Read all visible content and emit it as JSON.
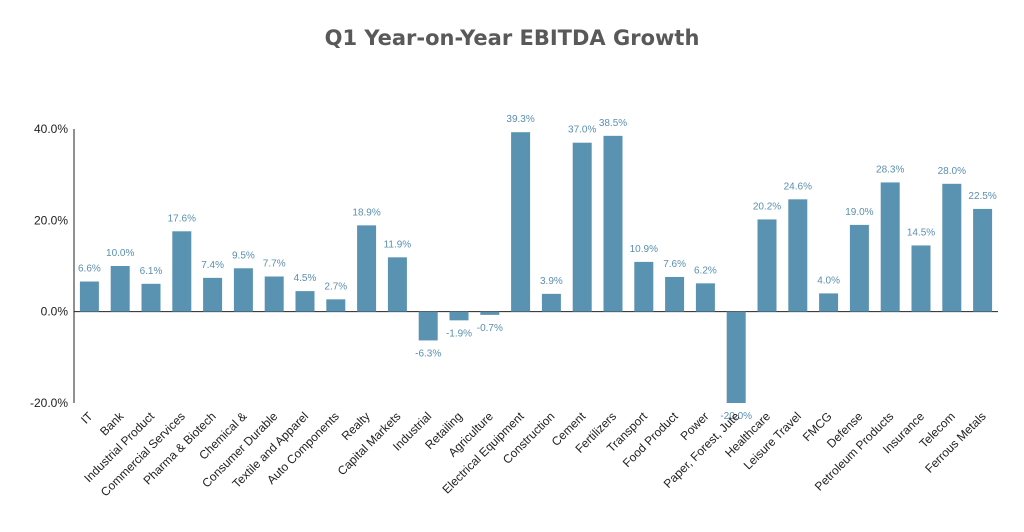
{
  "chart_data": {
    "type": "bar",
    "title": "Q1 Year-on-Year EBITDA Growth",
    "xlabel": "",
    "ylabel": "",
    "ylim": [
      -20,
      40
    ],
    "yticks": [
      "40.0%",
      "20.0%",
      "0.0%",
      "-20.0%"
    ],
    "ytick_values": [
      40,
      20,
      0,
      -20
    ],
    "bar_color": "#5a93b1",
    "label_color": "#5a8fb0",
    "categories": [
      "IT",
      "Bank",
      "Industrial Product",
      "Commercial Services",
      "Pharma & Biotech",
      "Chemical &",
      "Consumer Durable",
      "Textile and Apparel",
      "Auto Components",
      "Realty",
      "Capital Markets",
      "Industrial",
      "Retailing",
      "Agriculture",
      "Electrical Equipment",
      "Construction",
      "Cement",
      "Fertilizers",
      "Transport",
      "Food Product",
      "Power",
      "Paper, Forest, Jute",
      "Healthcare",
      "Leisure Travel",
      "FMCG",
      "Defense",
      "Petroleum Products",
      "Insurance",
      "Telecom",
      "Ferrous Metals"
    ],
    "values": [
      6.6,
      10.0,
      6.1,
      17.6,
      7.4,
      9.5,
      7.7,
      4.5,
      2.7,
      18.9,
      11.9,
      -6.3,
      -1.9,
      -0.7,
      39.3,
      3.9,
      37.0,
      38.5,
      10.9,
      7.6,
      6.2,
      -20.0,
      20.2,
      24.6,
      4.0,
      19.0,
      28.3,
      14.5,
      28.0,
      22.5
    ],
    "data_labels": [
      "6.6%",
      "10.0%",
      "6.1%",
      "17.6%",
      "7.4%",
      "9.5%",
      "7.7%",
      "4.5%",
      "2.7%",
      "18.9%",
      "11.9%",
      "-6.3%",
      "-1.9%",
      "-0.7%",
      "39.3%",
      "3.9%",
      "37.0%",
      "38.5%",
      "10.9%",
      "7.6%",
      "6.2%",
      "-20.0%",
      "20.2%",
      "24.6%",
      "4.0%",
      "19.0%",
      "28.3%",
      "14.5%",
      "28.0%",
      "22.5%"
    ]
  }
}
